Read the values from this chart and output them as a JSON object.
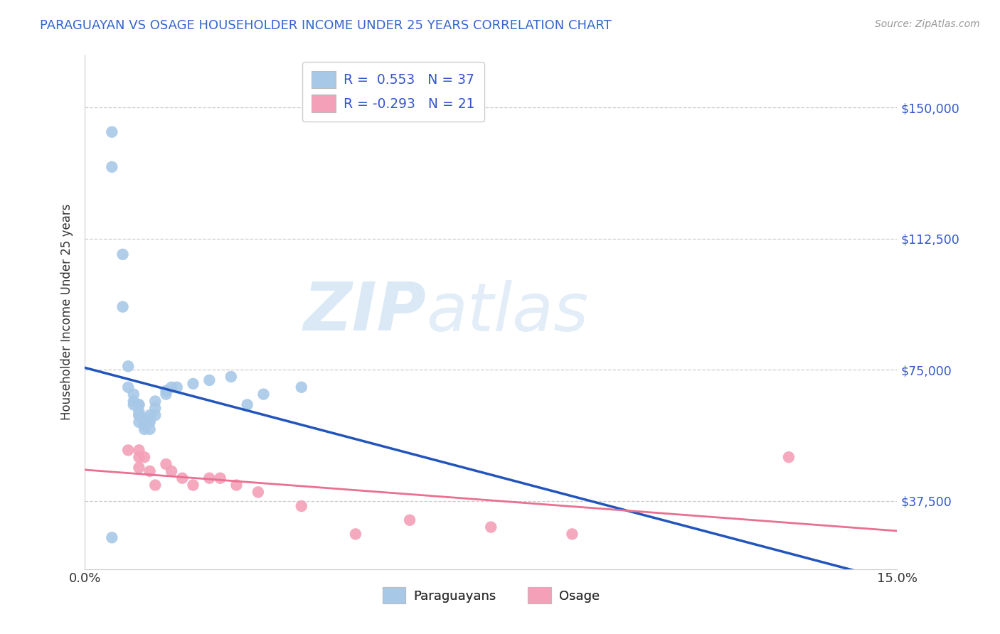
{
  "title": "PARAGUAYAN VS OSAGE HOUSEHOLDER INCOME UNDER 25 YEARS CORRELATION CHART",
  "source": "Source: ZipAtlas.com",
  "ylabel": "Householder Income Under 25 years",
  "xlim": [
    0.0,
    0.15
  ],
  "ylim": [
    18000,
    165000
  ],
  "yticks": [
    37500,
    75000,
    112500,
    150000
  ],
  "ytick_labels": [
    "$37,500",
    "$75,000",
    "$112,500",
    "$150,000"
  ],
  "xticks": [
    0.0,
    0.15
  ],
  "xtick_labels": [
    "0.0%",
    "15.0%"
  ],
  "legend_r1": "R =  0.553",
  "legend_n1": "N = 37",
  "legend_r2": "R = -0.293",
  "legend_n2": "N = 21",
  "watermark_zip": "ZIP",
  "watermark_atlas": "atlas",
  "blue_color": "#A8C8E8",
  "pink_color": "#F4A0B8",
  "blue_line_color": "#2255BB",
  "pink_line_color": "#E87090",
  "paraguayan_x": [
    0.005,
    0.005,
    0.007,
    0.007,
    0.008,
    0.008,
    0.009,
    0.009,
    0.009,
    0.01,
    0.01,
    0.01,
    0.01,
    0.01,
    0.01,
    0.011,
    0.011,
    0.011,
    0.011,
    0.012,
    0.012,
    0.012,
    0.012,
    0.013,
    0.013,
    0.013,
    0.015,
    0.015,
    0.016,
    0.017,
    0.02,
    0.023,
    0.027,
    0.033,
    0.04,
    0.005,
    0.03
  ],
  "paraguayan_y": [
    143000,
    133000,
    108000,
    93000,
    76000,
    70000,
    68000,
    66000,
    65000,
    65000,
    65000,
    63000,
    62000,
    62000,
    60000,
    61000,
    60000,
    59000,
    58000,
    62000,
    61000,
    60000,
    58000,
    66000,
    64000,
    62000,
    69000,
    68000,
    70000,
    70000,
    71000,
    72000,
    73000,
    68000,
    70000,
    27000,
    65000
  ],
  "osage_x": [
    0.008,
    0.01,
    0.01,
    0.01,
    0.011,
    0.012,
    0.013,
    0.015,
    0.016,
    0.018,
    0.02,
    0.023,
    0.025,
    0.028,
    0.032,
    0.04,
    0.05,
    0.06,
    0.075,
    0.09,
    0.13
  ],
  "osage_y": [
    52000,
    52000,
    50000,
    47000,
    50000,
    46000,
    42000,
    48000,
    46000,
    44000,
    42000,
    44000,
    44000,
    42000,
    40000,
    36000,
    28000,
    32000,
    30000,
    28000,
    50000
  ]
}
